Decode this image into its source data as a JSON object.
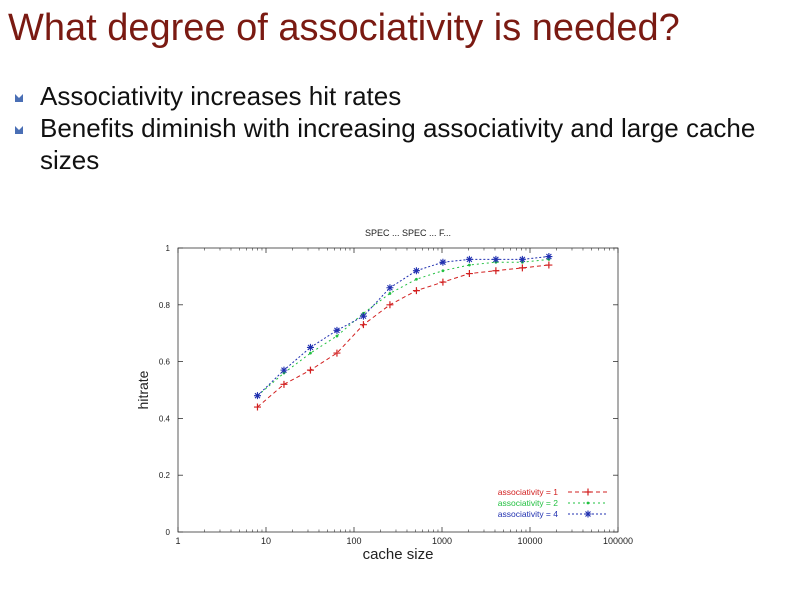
{
  "slide": {
    "title": "What degree of associativity is needed?",
    "bullets": [
      "Associativity increases hit rates",
      "Benefits diminish with increasing associativity and large cache sizes"
    ]
  },
  "chart_data": {
    "type": "line",
    "title": "SPEC ... SPEC ... F...",
    "xlabel": "cache size",
    "ylabel": "hitrate",
    "x_scale": "log",
    "xlim": [
      1,
      100000
    ],
    "ylim": [
      0,
      1
    ],
    "x_ticks": [
      "1",
      "10",
      "100",
      "1000",
      "10000",
      "100000"
    ],
    "y_ticks": [
      "0",
      "0.2",
      "0.4",
      "0.6",
      "0.8",
      "1"
    ],
    "grid": false,
    "legend_position": "bottom-right",
    "series": [
      {
        "name": "associativity = 1",
        "color": "#d22020",
        "marker": "plus",
        "dash": "4,3",
        "x": [
          8,
          16,
          32,
          64,
          128,
          256,
          512,
          1024,
          2048,
          4096,
          8192,
          16384
        ],
        "y": [
          0.44,
          0.52,
          0.57,
          0.63,
          0.73,
          0.8,
          0.85,
          0.88,
          0.91,
          0.92,
          0.93,
          0.94
        ]
      },
      {
        "name": "associativity = 2",
        "color": "#22c040",
        "marker": "dot",
        "dash": "2,3",
        "x": [
          8,
          16,
          32,
          64,
          128,
          256,
          512,
          1024,
          2048,
          4096,
          8192,
          16384
        ],
        "y": [
          0.48,
          0.56,
          0.63,
          0.69,
          0.77,
          0.84,
          0.89,
          0.92,
          0.94,
          0.95,
          0.95,
          0.96
        ]
      },
      {
        "name": "associativity = 4",
        "color": "#2030b0",
        "marker": "star",
        "dash": "2,2",
        "x": [
          8,
          16,
          32,
          64,
          128,
          256,
          512,
          1024,
          2048,
          4096,
          8192,
          16384
        ],
        "y": [
          0.48,
          0.57,
          0.65,
          0.71,
          0.76,
          0.86,
          0.92,
          0.95,
          0.96,
          0.96,
          0.96,
          0.97
        ]
      }
    ]
  },
  "colors": {
    "title": "#7a1a12",
    "bullet_icon": "#4a6fb5"
  }
}
